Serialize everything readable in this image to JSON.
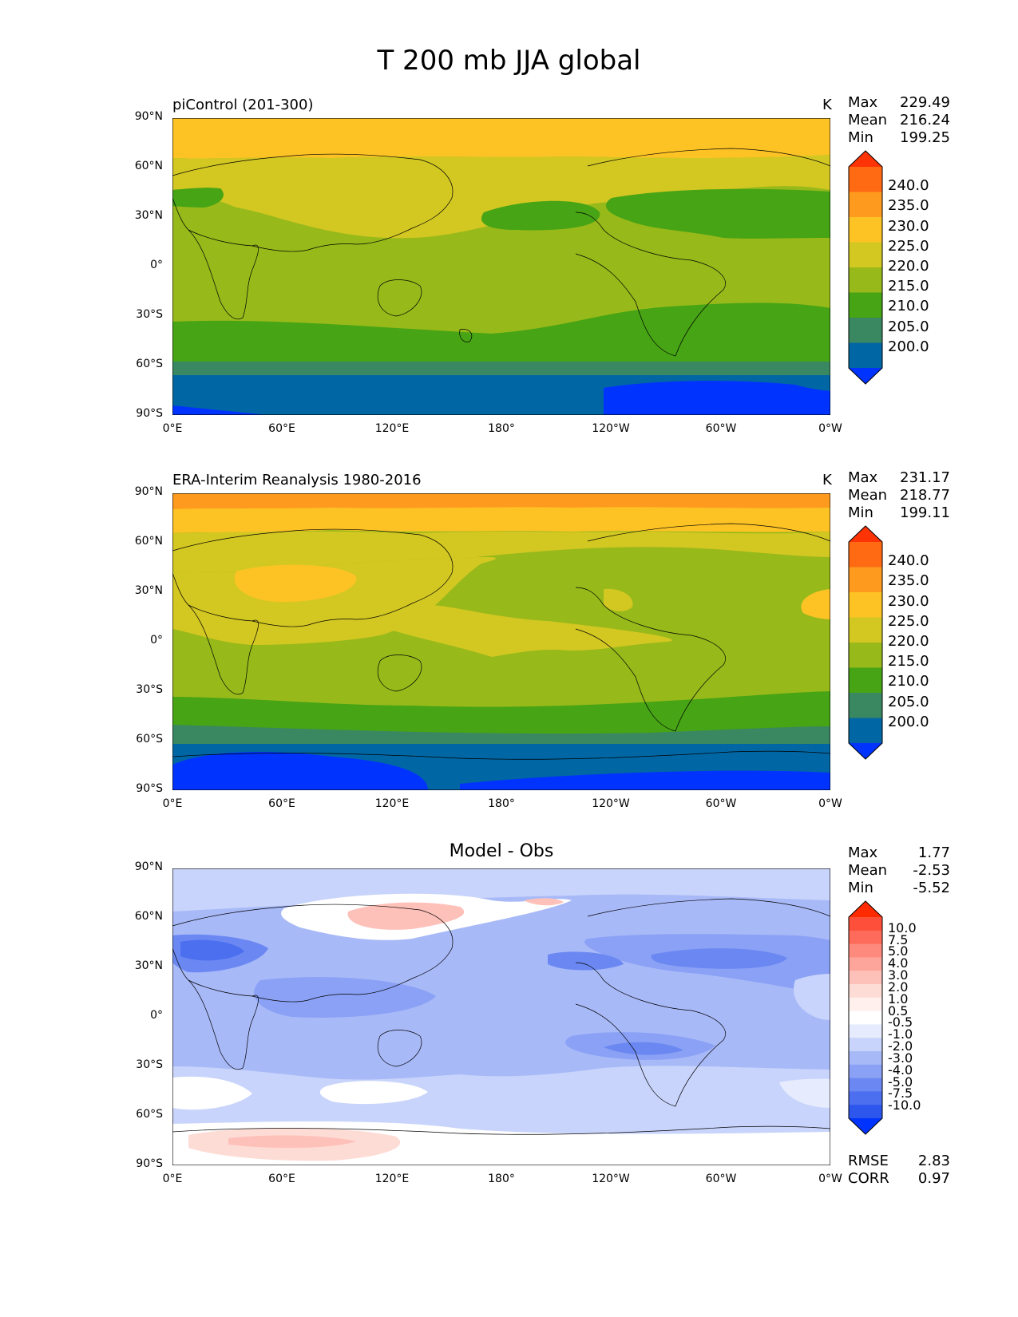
{
  "figure": {
    "title": "T 200 mb JJA global"
  },
  "axes": {
    "yticks": [
      "90°N",
      "60°N",
      "30°N",
      "0°",
      "30°S",
      "60°S",
      "90°S"
    ],
    "xticks": [
      "0°E",
      "60°E",
      "120°E",
      "180°",
      "120°W",
      "60°W",
      "0°W"
    ]
  },
  "panels": [
    {
      "title": "piControl (201-300)",
      "units": "K",
      "stats": {
        "max_label": "Max",
        "max": "229.49",
        "mean_label": "Mean",
        "mean": "216.24",
        "min_label": "Min",
        "min": "199.25"
      },
      "colorbar": {
        "labels": [
          "240.0",
          "235.0",
          "230.0",
          "225.0",
          "220.0",
          "215.0",
          "210.0",
          "205.0",
          "200.0"
        ],
        "colors": [
          "#fe3306",
          "#ff6a13",
          "#fe9a1e",
          "#fdc325",
          "#d3c722",
          "#97b91a",
          "#46a415",
          "#3a8861",
          "#0167a4",
          "#0033fd"
        ]
      }
    },
    {
      "title": "ERA-Interim Reanalysis 1980-2016",
      "units": "K",
      "stats": {
        "max_label": "Max",
        "max": "231.17",
        "mean_label": "Mean",
        "mean": "218.77",
        "min_label": "Min",
        "min": "199.11"
      },
      "colorbar": {
        "labels": [
          "240.0",
          "235.0",
          "230.0",
          "225.0",
          "220.0",
          "215.0",
          "210.0",
          "205.0",
          "200.0"
        ],
        "colors": [
          "#fe3306",
          "#ff6a13",
          "#fe9a1e",
          "#fdc325",
          "#d3c722",
          "#97b91a",
          "#46a415",
          "#3a8861",
          "#0167a4",
          "#0033fd"
        ]
      }
    },
    {
      "title": "Model - Obs",
      "units": "",
      "stats": {
        "max_label": "Max",
        "max": "1.77",
        "mean_label": "Mean",
        "mean": "-2.53",
        "min_label": "Min",
        "min": "-5.52"
      },
      "colorbar": {
        "labels": [
          "10.0",
          "7.5",
          "5.0",
          "4.0",
          "3.0",
          "2.0",
          "1.0",
          "0.5",
          "-0.5",
          "-1.0",
          "-2.0",
          "-3.0",
          "-4.0",
          "-5.0",
          "-7.5",
          "-10.0"
        ],
        "colors": [
          "#ff2a00",
          "#fe4f3a",
          "#fe6b5a",
          "#fd8a7c",
          "#fea59b",
          "#fec1b9",
          "#fedcd6",
          "#fff0ee",
          "#ffffff",
          "#e6ecfd",
          "#c8d4fb",
          "#a8b9f8",
          "#8aa1f5",
          "#6b88f2",
          "#4c6ff0",
          "#2c56ec",
          "#0033fd"
        ]
      },
      "footer": {
        "rmse_label": "RMSE",
        "rmse": "2.83",
        "corr_label": "CORR",
        "corr": "0.97"
      }
    }
  ]
}
